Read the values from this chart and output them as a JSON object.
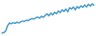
{
  "values": [
    2.0,
    2.1,
    2.5,
    3.8,
    4.5,
    4.3,
    4.6,
    4.4,
    4.7,
    4.5,
    4.8,
    5.0,
    4.9,
    5.2,
    5.1,
    5.4,
    5.6,
    5.5,
    5.8,
    6.0,
    5.7,
    6.2,
    5.9,
    6.4,
    6.8,
    6.3,
    7.0,
    6.5,
    7.2,
    6.8,
    7.5,
    7.1,
    7.8,
    7.4,
    8.0,
    7.3,
    8.3,
    8.0,
    8.5,
    7.8,
    8.6,
    8.2,
    8.8,
    8.4,
    9.0,
    8.5,
    9.2,
    8.7,
    9.3,
    8.9
  ],
  "line_color": "#4a9cc7",
  "background_color": "#ffffff",
  "linewidth": 1.3
}
